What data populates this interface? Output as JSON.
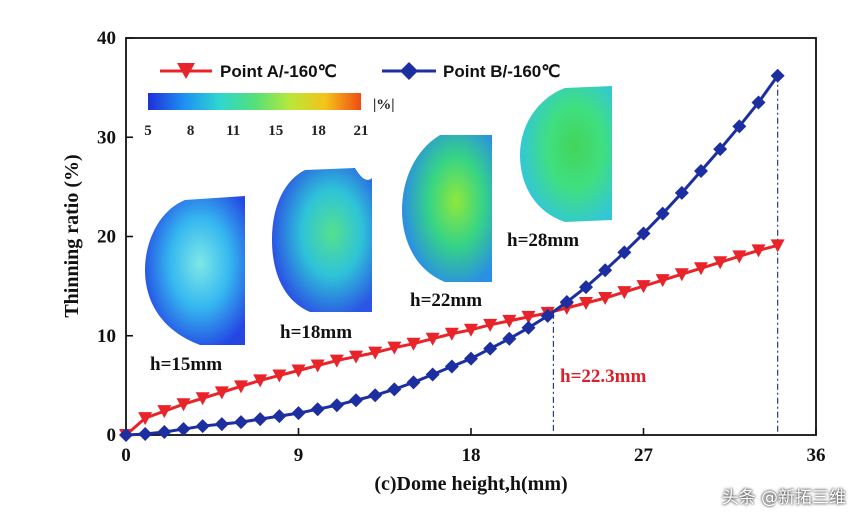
{
  "chart_data": {
    "type": "line",
    "xlabel": "(c)Dome height,h(mm)",
    "ylabel": "Thinning ratio (%)",
    "xlim": [
      0,
      36
    ],
    "ylim": [
      0,
      40
    ],
    "xticks": [
      "0",
      "9",
      "18",
      "27",
      "36"
    ],
    "yticks": [
      "0",
      "10",
      "20",
      "30",
      "40"
    ],
    "grid": false,
    "legend_position": "top-left",
    "series": [
      {
        "name": "Point A/-160℃",
        "color": "#e8242a",
        "marker": "triangle-down",
        "x": [
          0,
          1,
          2,
          3,
          4,
          5,
          6,
          7,
          8,
          9,
          10,
          11,
          12,
          13,
          14,
          15,
          16,
          17,
          18,
          19,
          20,
          21,
          22,
          23,
          24,
          25,
          26,
          27,
          28,
          29,
          30,
          31,
          32,
          33,
          34
        ],
        "y": [
          0,
          1.7,
          2.4,
          3.1,
          3.7,
          4.3,
          4.9,
          5.5,
          6.0,
          6.5,
          7.0,
          7.5,
          7.9,
          8.3,
          8.8,
          9.2,
          9.7,
          10.2,
          10.6,
          11.1,
          11.5,
          11.9,
          12.3,
          12.8,
          13.3,
          13.8,
          14.4,
          15.0,
          15.6,
          16.2,
          16.8,
          17.4,
          18.0,
          18.6,
          19.1
        ]
      },
      {
        "name": "Point B/-160℃",
        "color": "#1d2fa0",
        "marker": "diamond",
        "x": [
          0,
          1,
          2,
          3,
          4,
          5,
          6,
          7,
          8,
          9,
          10,
          11,
          12,
          13,
          14,
          15,
          16,
          17,
          18,
          19,
          20,
          21,
          22,
          23,
          24,
          25,
          26,
          27,
          28,
          29,
          30,
          31,
          32,
          33,
          34
        ],
        "y": [
          0,
          0.1,
          0.3,
          0.6,
          0.9,
          1.1,
          1.3,
          1.6,
          1.9,
          2.2,
          2.6,
          3.0,
          3.5,
          4.0,
          4.6,
          5.3,
          6.1,
          6.9,
          7.7,
          8.7,
          9.7,
          10.8,
          12.0,
          13.4,
          14.9,
          16.6,
          18.4,
          20.3,
          22.3,
          24.4,
          26.6,
          28.8,
          31.1,
          33.5,
          36.2
        ]
      }
    ],
    "annotations": {
      "intersection_label": "h=22.3mm",
      "intersection": {
        "x": 22.3,
        "y": 12.3
      },
      "end_point_x": 34,
      "end_points_y": [
        19.1,
        36.2
      ]
    },
    "colorbar": {
      "ticks": [
        "5",
        "8",
        "11",
        "15",
        "18",
        "21"
      ],
      "unit": "|%|",
      "colors": [
        "#1e2fd8",
        "#1d8ff2",
        "#2ed6d0",
        "#53e07a",
        "#b8e83a",
        "#f5c21a",
        "#f04b14"
      ]
    },
    "insets": [
      {
        "label": "h=15mm",
        "colors": [
          "#7ee8e6",
          "#35b7f0",
          "#2447e3"
        ]
      },
      {
        "label": "h=18mm",
        "colors": [
          "#55e08e",
          "#2ec3d8",
          "#2b55e4"
        ]
      },
      {
        "label": "h=22mm",
        "colors": [
          "#8fe83a",
          "#36d486",
          "#2a8ee4"
        ]
      },
      {
        "label": "h=28mm",
        "colors": [
          "#44d45a",
          "#3fdf80",
          "#33c7d6"
        ]
      }
    ]
  },
  "watermark": "头条 @新拓三维"
}
